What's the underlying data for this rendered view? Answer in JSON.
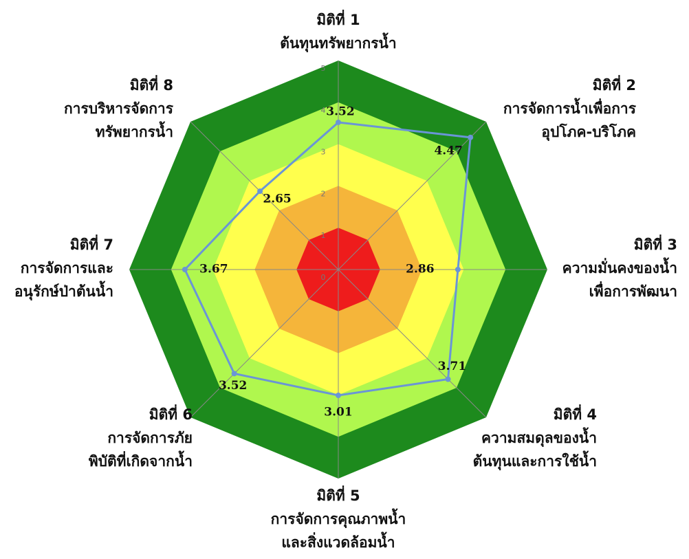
{
  "chart_data": {
    "type": "radar",
    "categories": [
      [
        "มิติที่ 1",
        "ต้นทุนทรัพยากรน้ำ"
      ],
      [
        "มิติที่ 2",
        "การจัดการน้ำเพื่อการ",
        "อุปโภค-บริโภค"
      ],
      [
        "มิติที่ 3",
        "ความมั่นคงของน้ำ",
        "เพื่อการพัฒนา"
      ],
      [
        "มิติที่ 4",
        "ความสมดุลของน้ำ",
        "ต้นทุนและการใช้น้ำ"
      ],
      [
        "มิติที่ 5",
        "การจัดการคุณภาพน้ำ",
        "และสิ่งแวดล้อมน้ำ"
      ],
      [
        "มิติที่ 6",
        "การจัดการภัย",
        "พิบัติที่เกิดจากน้ำ"
      ],
      [
        "มิติที่ 7",
        "การจัดการและ",
        "อนุรักษ์ป่าต้นน้ำ"
      ],
      [
        "มิติที่ 8",
        "การบริหารจัดการ",
        "ทรัพยากรน้ำ"
      ]
    ],
    "values": [
      3.52,
      4.47,
      2.86,
      3.71,
      3.01,
      3.52,
      3.67,
      2.65
    ],
    "color": "#6a95d6",
    "band_colors": [
      "#ee1c1c",
      "#f5b53a",
      "#ffff4d",
      "#b0f74e",
      "#1d8a1d"
    ],
    "rlim": [
      0,
      5
    ],
    "rticks": [
      0,
      1,
      2,
      3,
      4,
      5
    ]
  }
}
